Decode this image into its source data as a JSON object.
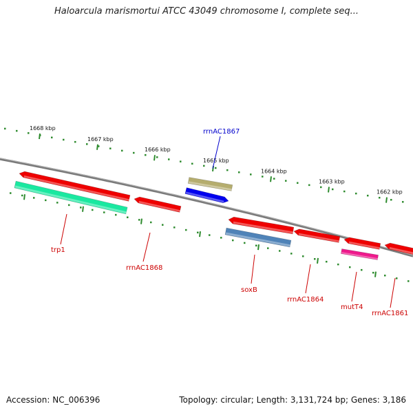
{
  "title": "Haloarcula marismortui ATCC 43049 chromosome I, complete seq...",
  "footer": {
    "accession": "Accession: NC_006396",
    "summary": "Topology: circular; Length: 3,131,724 bp; Genes: 3,186"
  },
  "colors": {
    "backbone": "#7a7a7a",
    "tick": "#2e8b2e",
    "tick_label": "#111111",
    "label_red": "#cc0000",
    "label_blue": "#0000cc",
    "gene_red": "#ee0000",
    "gene_teal": "#1ae8a0",
    "gene_khaki": "#b5ad6e",
    "gene_blue": "#0000ee",
    "gene_steel": "#4f83b8",
    "gene_magenta": "#ee1a8c"
  },
  "scale": {
    "ticks": [
      "1668 kbp",
      "1667 kbp",
      "1666 kbp",
      "1665 kbp",
      "1664 kbp",
      "1663 kbp",
      "1662 kbp"
    ]
  },
  "genes": [
    {
      "label": "trp1",
      "color": "#ee0000"
    },
    {
      "label": "",
      "color": "#1ae8a0"
    },
    {
      "label": "rrnAC1868",
      "color": "#ee0000"
    },
    {
      "label": "",
      "color": "#b5ad6e"
    },
    {
      "label": "rrnAC1867",
      "color": "#0000ee"
    },
    {
      "label": "soxB",
      "color": "#ee0000"
    },
    {
      "label": "",
      "color": "#4f83b8"
    },
    {
      "label": "rrnAC1864",
      "color": "#ee0000"
    },
    {
      "label": "",
      "color": "#ee0000"
    },
    {
      "label": "mutT4",
      "color": "#ee1a8c"
    },
    {
      "label": "rrnAC1861",
      "color": "#ee0000"
    }
  ]
}
